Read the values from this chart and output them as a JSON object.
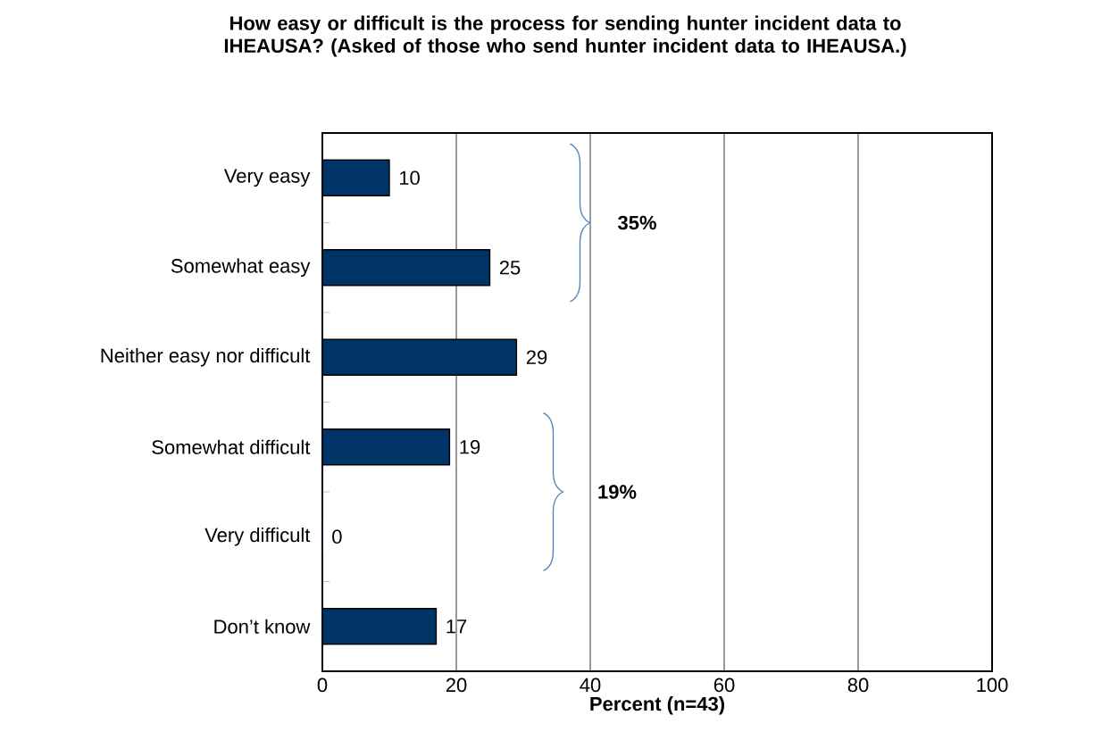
{
  "chart_data": {
    "type": "bar",
    "orientation": "horizontal",
    "title": "How easy or difficult is the process for sending hunter incident data to IHEAUSA? (Asked of those who send hunter incident data to IHEAUSA.)",
    "categories": [
      "Very easy",
      "Somewhat easy",
      "Neither easy nor difficult",
      "Somewhat difficult",
      "Very difficult",
      "Don’t know"
    ],
    "values": [
      10,
      25,
      29,
      19,
      0,
      17
    ],
    "color": "#003366",
    "data_labels": true,
    "xlabel": "Percent (n=43)",
    "xlim": [
      0,
      100
    ],
    "xticks": [
      0,
      20,
      40,
      60,
      80,
      100
    ],
    "grid": "x",
    "annotations": [
      "35%",
      "19%"
    ]
  }
}
